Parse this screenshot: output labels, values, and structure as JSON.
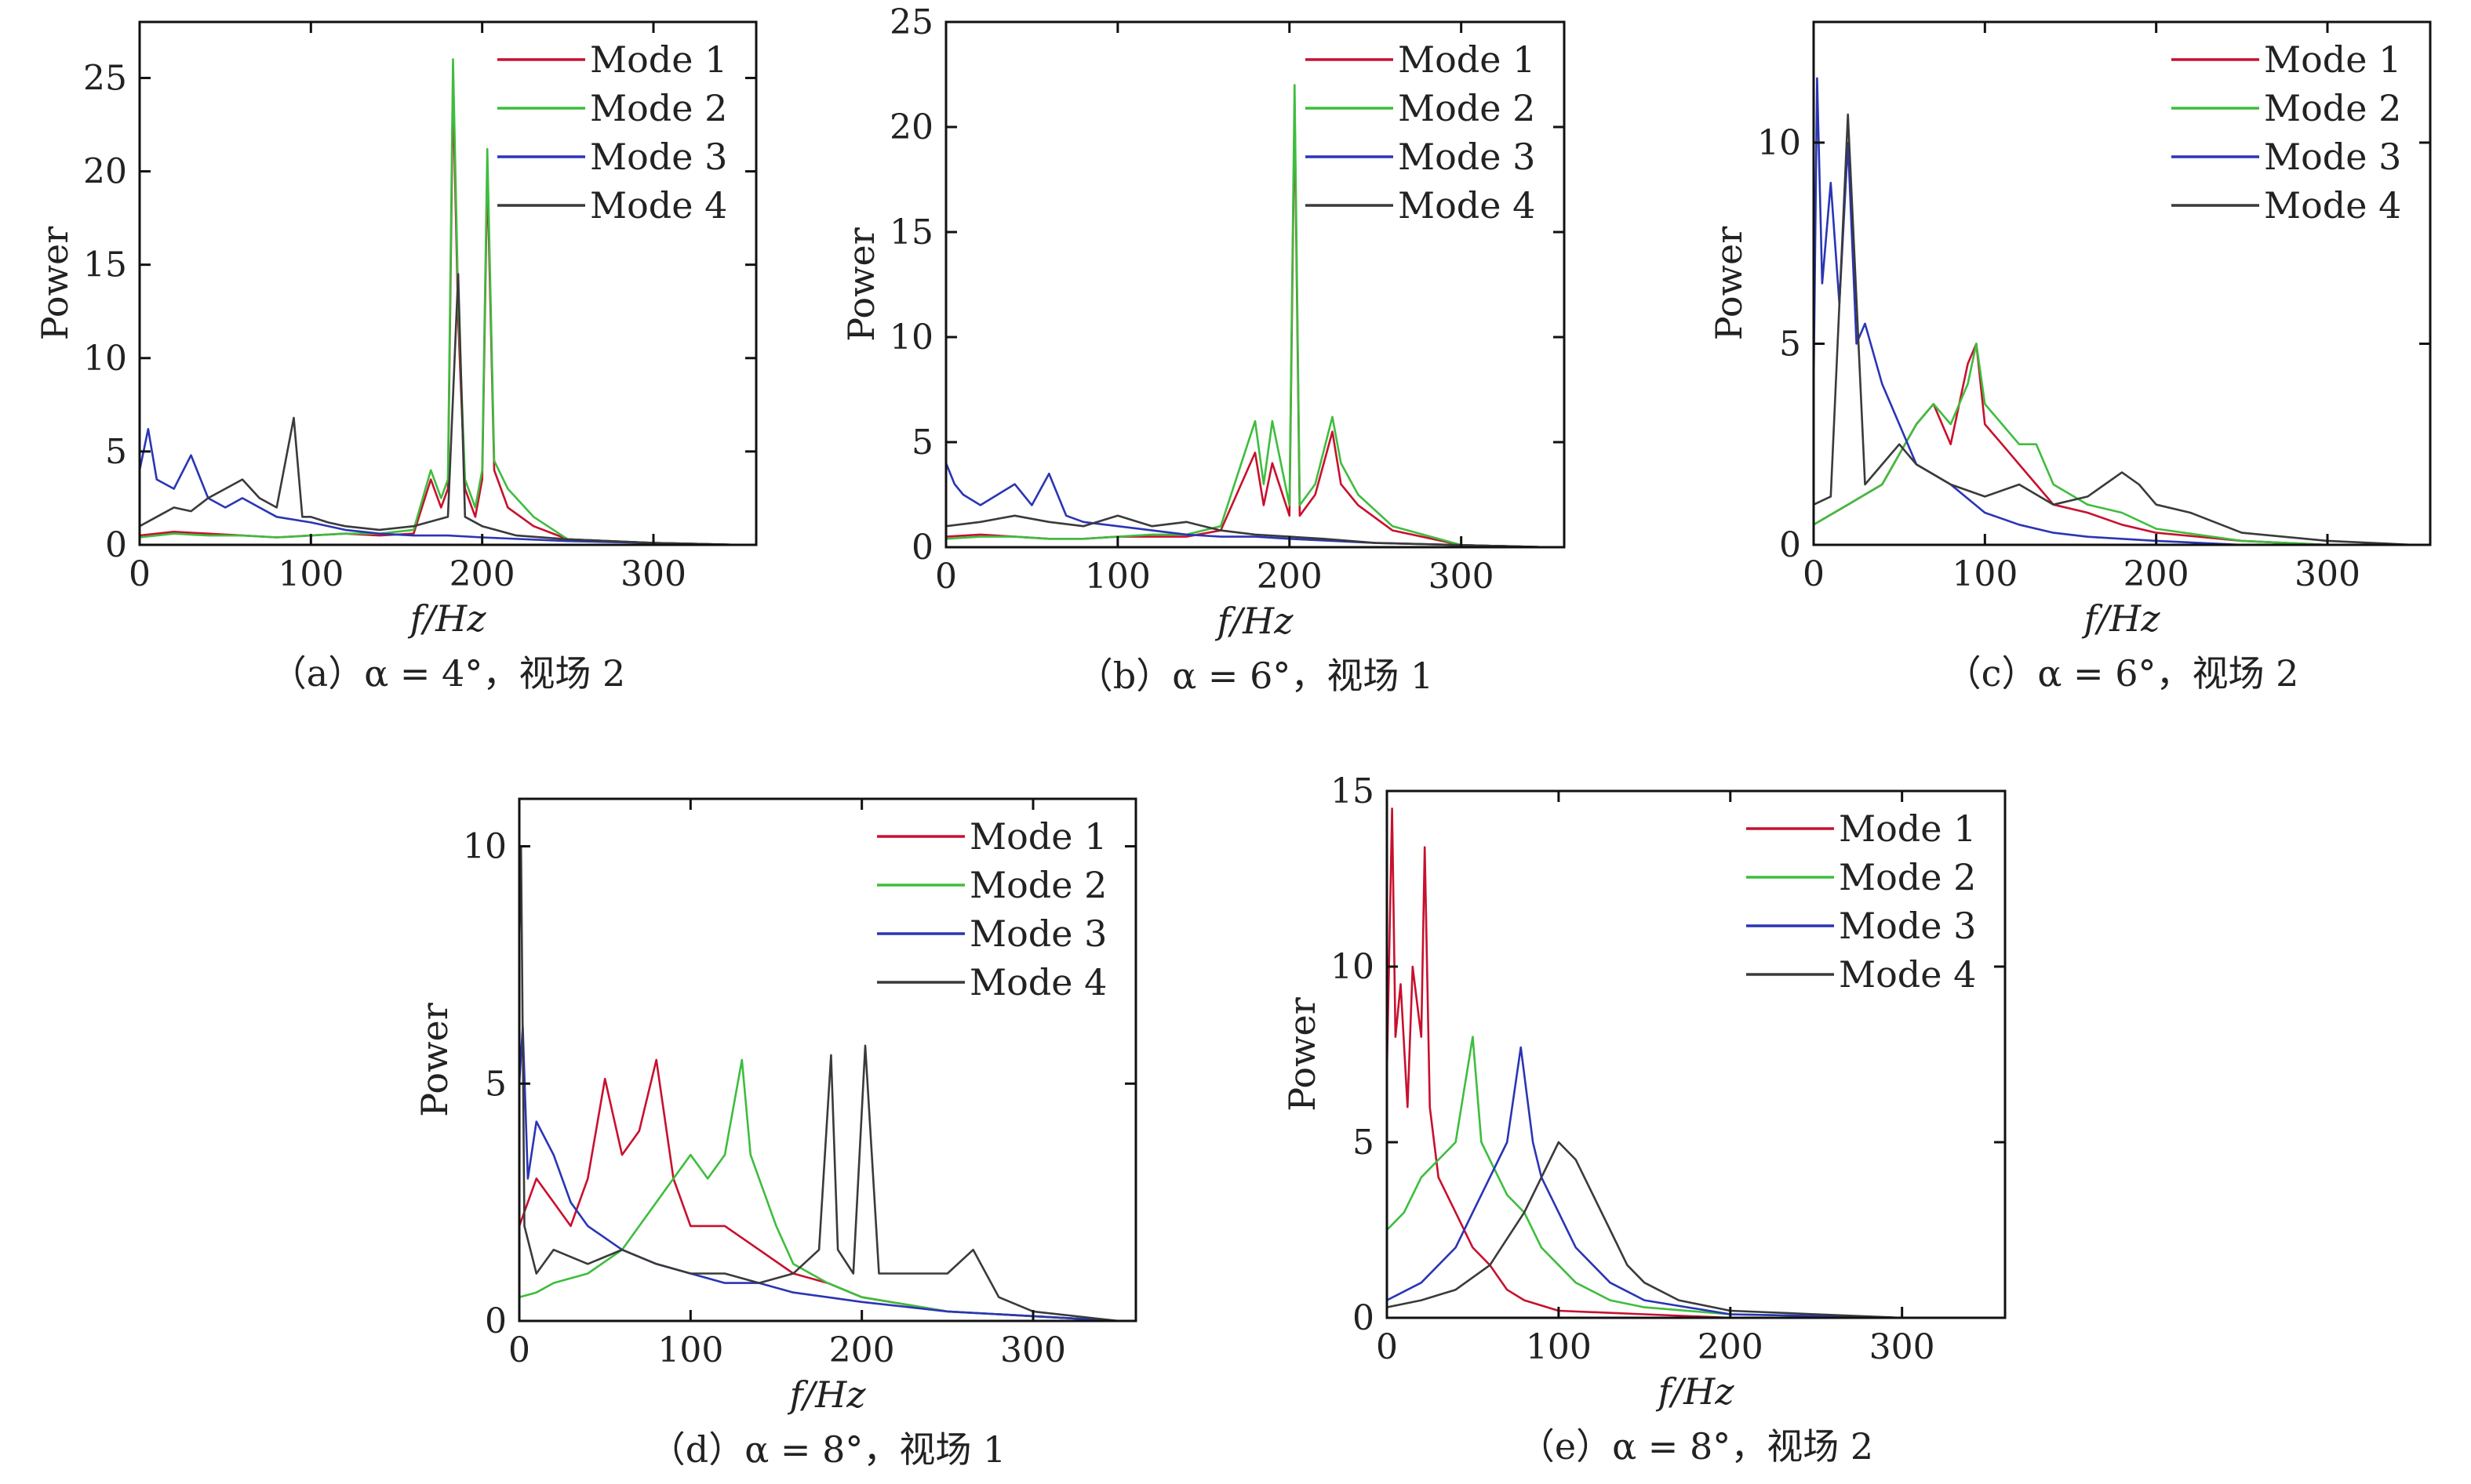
{
  "colors": {
    "mode1": "#c8102e",
    "mode2": "#3ebd3e",
    "mode3": "#2a35b4",
    "mode4": "#3a3a3a"
  },
  "chart_data": [
    {
      "type": "line",
      "caption": "（a）α = 4°，视场 2",
      "xlabel": "f/Hz",
      "ylabel": "Power",
      "xlim": [
        0,
        360
      ],
      "ylim": [
        0,
        28
      ],
      "xticks": [
        0,
        100,
        200,
        300
      ],
      "yticks": [
        0,
        5,
        10,
        15,
        20,
        25
      ],
      "legend": [
        "Mode 1",
        "Mode 2",
        "Mode 3",
        "Mode 4"
      ],
      "legend_position": "top-right",
      "series": [
        {
          "name": "Mode 1",
          "color": "#c8102e",
          "x": [
            0,
            20,
            40,
            60,
            80,
            100,
            120,
            140,
            160,
            170,
            176,
            180,
            183,
            186,
            190,
            196,
            200,
            203,
            207,
            215,
            230,
            250,
            300,
            350
          ],
          "y": [
            0.5,
            0.7,
            0.6,
            0.5,
            0.4,
            0.5,
            0.6,
            0.5,
            0.6,
            3.5,
            2.0,
            3.0,
            24.5,
            12.0,
            3.0,
            1.5,
            3.5,
            20.0,
            4.0,
            2.0,
            1.0,
            0.3,
            0.1,
            0.0
          ]
        },
        {
          "name": "Mode 2",
          "color": "#3ebd3e",
          "x": [
            0,
            20,
            40,
            60,
            80,
            100,
            120,
            140,
            160,
            170,
            176,
            180,
            183,
            186,
            190,
            196,
            200,
            203,
            207,
            215,
            230,
            250,
            300,
            350
          ],
          "y": [
            0.4,
            0.6,
            0.5,
            0.5,
            0.4,
            0.5,
            0.6,
            0.6,
            0.8,
            4.0,
            2.5,
            3.5,
            26.0,
            13.0,
            3.5,
            2.0,
            4.0,
            21.2,
            4.5,
            3.0,
            1.5,
            0.3,
            0.1,
            0.0
          ]
        },
        {
          "name": "Mode 3",
          "color": "#2a35b4",
          "x": [
            0,
            5,
            10,
            20,
            30,
            40,
            50,
            60,
            70,
            80,
            100,
            120,
            140,
            160,
            180,
            200,
            250,
            300,
            350
          ],
          "y": [
            4.0,
            6.2,
            3.5,
            3.0,
            4.8,
            2.5,
            2.0,
            2.5,
            2.0,
            1.5,
            1.2,
            0.8,
            0.6,
            0.5,
            0.5,
            0.4,
            0.2,
            0.1,
            0.0
          ]
        },
        {
          "name": "Mode 4",
          "color": "#3a3a3a",
          "x": [
            0,
            10,
            20,
            30,
            40,
            50,
            60,
            70,
            80,
            90,
            95,
            100,
            110,
            120,
            140,
            160,
            180,
            186,
            190,
            200,
            220,
            250,
            300,
            350
          ],
          "y": [
            1.0,
            1.5,
            2.0,
            1.8,
            2.5,
            3.0,
            3.5,
            2.5,
            2.0,
            6.8,
            1.5,
            1.5,
            1.2,
            1.0,
            0.8,
            1.0,
            1.5,
            14.5,
            1.5,
            1.0,
            0.5,
            0.3,
            0.1,
            0.0
          ]
        }
      ]
    },
    {
      "type": "line",
      "caption": "（b）α = 6°，视场 1",
      "xlabel": "f/Hz",
      "ylabel": "Power",
      "xlim": [
        0,
        360
      ],
      "ylim": [
        0,
        25
      ],
      "xticks": [
        0,
        100,
        200,
        300
      ],
      "yticks": [
        0,
        5,
        10,
        15,
        20,
        25
      ],
      "legend": [
        "Mode 1",
        "Mode 2",
        "Mode 3",
        "Mode 4"
      ],
      "legend_position": "top-right",
      "series": [
        {
          "name": "Mode 1",
          "color": "#c8102e",
          "x": [
            0,
            20,
            40,
            60,
            80,
            100,
            120,
            140,
            160,
            180,
            185,
            190,
            200,
            203,
            206,
            215,
            225,
            230,
            240,
            260,
            300,
            350
          ],
          "y": [
            0.5,
            0.6,
            0.5,
            0.4,
            0.4,
            0.5,
            0.5,
            0.5,
            0.8,
            4.5,
            2.0,
            4.0,
            1.5,
            21.0,
            1.5,
            2.5,
            5.5,
            3.0,
            2.0,
            0.8,
            0.1,
            0.0
          ]
        },
        {
          "name": "Mode 2",
          "color": "#3ebd3e",
          "x": [
            0,
            20,
            40,
            60,
            80,
            100,
            120,
            140,
            160,
            180,
            185,
            190,
            200,
            203,
            206,
            215,
            225,
            230,
            240,
            260,
            300,
            350
          ],
          "y": [
            0.4,
            0.5,
            0.5,
            0.4,
            0.4,
            0.5,
            0.6,
            0.6,
            1.0,
            6.0,
            3.0,
            6.0,
            2.0,
            22.0,
            2.0,
            3.0,
            6.2,
            4.0,
            2.5,
            1.0,
            0.1,
            0.0
          ]
        },
        {
          "name": "Mode 3",
          "color": "#2a35b4",
          "x": [
            0,
            5,
            10,
            20,
            30,
            40,
            50,
            60,
            70,
            80,
            100,
            120,
            140,
            160,
            180,
            200,
            250,
            300,
            350
          ],
          "y": [
            4.0,
            3.0,
            2.5,
            2.0,
            2.5,
            3.0,
            2.0,
            3.5,
            1.5,
            1.2,
            1.0,
            0.8,
            0.6,
            0.5,
            0.5,
            0.4,
            0.2,
            0.1,
            0.0
          ]
        },
        {
          "name": "Mode 4",
          "color": "#3a3a3a",
          "x": [
            0,
            20,
            40,
            60,
            80,
            100,
            120,
            140,
            160,
            180,
            200,
            220,
            250,
            300,
            350
          ],
          "y": [
            1.0,
            1.2,
            1.5,
            1.2,
            1.0,
            1.5,
            1.0,
            1.2,
            0.8,
            0.6,
            0.5,
            0.4,
            0.2,
            0.1,
            0.0
          ]
        }
      ]
    },
    {
      "type": "line",
      "caption": "（c）α = 6°，视场 2",
      "xlabel": "f/Hz",
      "ylabel": "Power",
      "xlim": [
        0,
        360
      ],
      "ylim": [
        0,
        13
      ],
      "xticks": [
        0,
        100,
        200,
        300
      ],
      "yticks": [
        0,
        5,
        10
      ],
      "legend": [
        "Mode 1",
        "Mode 2",
        "Mode 3",
        "Mode 4"
      ],
      "legend_position": "top-right",
      "series": [
        {
          "name": "Mode 1",
          "color": "#c8102e",
          "x": [
            0,
            20,
            40,
            60,
            70,
            80,
            90,
            95,
            100,
            110,
            120,
            140,
            160,
            180,
            200,
            250,
            300,
            350
          ],
          "y": [
            0.5,
            1.0,
            1.5,
            3.0,
            3.5,
            2.5,
            4.5,
            5.0,
            3.0,
            2.5,
            2.0,
            1.0,
            0.8,
            0.5,
            0.3,
            0.1,
            0.0,
            0.0
          ]
        },
        {
          "name": "Mode 2",
          "color": "#3ebd3e",
          "x": [
            0,
            20,
            40,
            60,
            70,
            80,
            90,
            95,
            100,
            110,
            120,
            130,
            140,
            160,
            180,
            200,
            250,
            300,
            350
          ],
          "y": [
            0.5,
            1.0,
            1.5,
            3.0,
            3.5,
            3.0,
            4.0,
            5.0,
            3.5,
            3.0,
            2.5,
            2.5,
            1.5,
            1.0,
            0.8,
            0.4,
            0.1,
            0.0,
            0.0
          ]
        },
        {
          "name": "Mode 3",
          "color": "#2a35b4",
          "x": [
            0,
            2,
            5,
            10,
            15,
            20,
            25,
            30,
            40,
            50,
            60,
            80,
            100,
            120,
            140,
            160,
            200,
            250,
            300,
            350
          ],
          "y": [
            4.0,
            11.6,
            6.5,
            9.0,
            6.0,
            10.0,
            5.0,
            5.5,
            4.0,
            3.0,
            2.0,
            1.5,
            0.8,
            0.5,
            0.3,
            0.2,
            0.1,
            0.0,
            0.0,
            0.0
          ]
        },
        {
          "name": "Mode 4",
          "color": "#3a3a3a",
          "x": [
            0,
            10,
            20,
            30,
            40,
            50,
            60,
            80,
            100,
            120,
            140,
            160,
            180,
            190,
            200,
            220,
            250,
            300,
            350
          ],
          "y": [
            1.0,
            1.2,
            10.7,
            1.5,
            2.0,
            2.5,
            2.0,
            1.5,
            1.2,
            1.5,
            1.0,
            1.2,
            1.8,
            1.5,
            1.0,
            0.8,
            0.3,
            0.1,
            0.0
          ]
        }
      ]
    },
    {
      "type": "line",
      "caption": "（d）α = 8°，视场 1",
      "xlabel": "f/Hz",
      "ylabel": "Power",
      "xlim": [
        0,
        360
      ],
      "ylim": [
        0,
        11
      ],
      "xticks": [
        0,
        100,
        200,
        300
      ],
      "yticks": [
        0,
        5,
        10
      ],
      "legend": [
        "Mode 1",
        "Mode 2",
        "Mode 3",
        "Mode 4"
      ],
      "legend_position": "top-right",
      "series": [
        {
          "name": "Mode 1",
          "color": "#c8102e",
          "x": [
            0,
            10,
            20,
            30,
            40,
            50,
            60,
            70,
            80,
            90,
            100,
            120,
            140,
            160,
            180,
            200,
            250,
            300,
            350
          ],
          "y": [
            2.0,
            3.0,
            2.5,
            2.0,
            3.0,
            5.1,
            3.5,
            4.0,
            5.5,
            3.0,
            2.0,
            2.0,
            1.5,
            1.0,
            0.8,
            0.5,
            0.2,
            0.1,
            0.0
          ]
        },
        {
          "name": "Mode 2",
          "color": "#3ebd3e",
          "x": [
            0,
            10,
            20,
            40,
            60,
            80,
            90,
            100,
            110,
            120,
            130,
            135,
            140,
            150,
            160,
            180,
            200,
            250,
            300,
            350
          ],
          "y": [
            0.5,
            0.6,
            0.8,
            1.0,
            1.5,
            2.5,
            3.0,
            3.5,
            3.0,
            3.5,
            5.5,
            3.5,
            3.0,
            2.0,
            1.2,
            0.8,
            0.5,
            0.2,
            0.1,
            0.0
          ]
        },
        {
          "name": "Mode 3",
          "color": "#2a35b4",
          "x": [
            0,
            2,
            5,
            10,
            20,
            30,
            40,
            60,
            80,
            100,
            120,
            140,
            160,
            180,
            200,
            250,
            300,
            350
          ],
          "y": [
            5.0,
            6.2,
            3.0,
            4.2,
            3.5,
            2.5,
            2.0,
            1.5,
            1.2,
            1.0,
            0.8,
            0.8,
            0.6,
            0.5,
            0.4,
            0.2,
            0.1,
            0.0
          ]
        },
        {
          "name": "Mode 4",
          "color": "#3a3a3a",
          "x": [
            0,
            1,
            3,
            10,
            20,
            40,
            60,
            80,
            100,
            120,
            140,
            160,
            175,
            182,
            186,
            195,
            202,
            210,
            230,
            250,
            265,
            280,
            300,
            350
          ],
          "y": [
            8.0,
            10.0,
            2.0,
            1.0,
            1.5,
            1.2,
            1.5,
            1.2,
            1.0,
            1.0,
            0.8,
            1.0,
            1.5,
            5.6,
            1.5,
            1.0,
            5.8,
            1.0,
            1.0,
            1.0,
            1.5,
            0.5,
            0.2,
            0.0
          ]
        }
      ]
    },
    {
      "type": "line",
      "caption": "（e）α = 8°，视场 2",
      "xlabel": "f/Hz",
      "ylabel": "Power",
      "xlim": [
        0,
        360
      ],
      "ylim": [
        0,
        15
      ],
      "xticks": [
        0,
        100,
        200,
        300
      ],
      "yticks": [
        0,
        5,
        10,
        15
      ],
      "legend": [
        "Mode 1",
        "Mode 2",
        "Mode 3",
        "Mode 4"
      ],
      "legend_position": "top-right",
      "series": [
        {
          "name": "Mode 1",
          "color": "#c8102e",
          "x": [
            0,
            3,
            5,
            8,
            12,
            15,
            20,
            22,
            25,
            30,
            40,
            50,
            60,
            70,
            80,
            100,
            150,
            200,
            300,
            350
          ],
          "y": [
            7.0,
            14.5,
            8.0,
            9.5,
            6.0,
            10.0,
            8.0,
            13.4,
            6.0,
            4.0,
            3.0,
            2.0,
            1.5,
            0.8,
            0.5,
            0.2,
            0.1,
            0.0,
            0.0,
            0.0
          ]
        },
        {
          "name": "Mode 2",
          "color": "#3ebd3e",
          "x": [
            0,
            10,
            20,
            30,
            40,
            50,
            55,
            60,
            70,
            80,
            90,
            100,
            110,
            130,
            150,
            200,
            300,
            350
          ],
          "y": [
            2.5,
            3.0,
            4.0,
            4.5,
            5.0,
            8.0,
            5.0,
            4.5,
            3.5,
            3.0,
            2.0,
            1.5,
            1.0,
            0.5,
            0.3,
            0.1,
            0.0,
            0.0
          ]
        },
        {
          "name": "Mode 3",
          "color": "#2a35b4",
          "x": [
            0,
            20,
            40,
            50,
            60,
            70,
            78,
            85,
            90,
            100,
            110,
            120,
            130,
            150,
            200,
            300,
            350
          ],
          "y": [
            0.5,
            1.0,
            2.0,
            3.0,
            4.0,
            5.0,
            7.7,
            5.0,
            4.0,
            3.0,
            2.0,
            1.5,
            1.0,
            0.5,
            0.1,
            0.0,
            0.0
          ]
        },
        {
          "name": "Mode 4",
          "color": "#3a3a3a",
          "x": [
            0,
            20,
            40,
            60,
            80,
            90,
            100,
            110,
            120,
            130,
            140,
            150,
            170,
            200,
            250,
            300,
            350
          ],
          "y": [
            0.3,
            0.5,
            0.8,
            1.5,
            3.0,
            4.0,
            5.0,
            4.5,
            3.5,
            2.5,
            1.5,
            1.0,
            0.5,
            0.2,
            0.1,
            0.0,
            0.0
          ]
        }
      ]
    }
  ]
}
